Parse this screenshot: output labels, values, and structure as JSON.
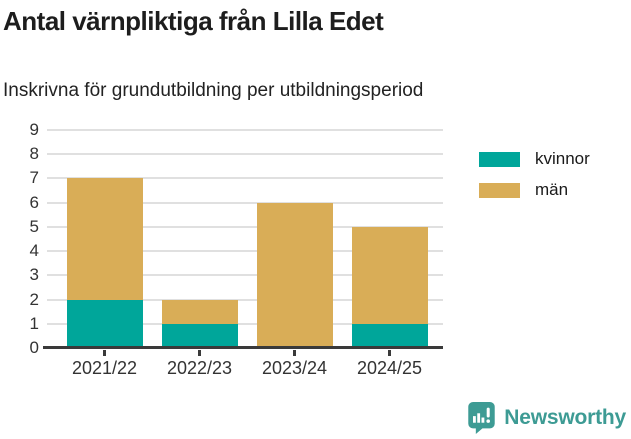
{
  "header": {
    "title": "Antal värnpliktiga från Lilla Edet",
    "subtitle": "Inskrivna för grundutbildning per utbildningsperiod"
  },
  "chart_data": {
    "type": "bar",
    "stacked": true,
    "title": "Antal värnpliktiga från Lilla Edet",
    "subtitle": "Inskrivna för grundutbildning per utbildningsperiod",
    "categories": [
      "2021/22",
      "2022/23",
      "2023/24",
      "2024/25"
    ],
    "series": [
      {
        "name": "kvinnor",
        "color": "#00a69a",
        "values": [
          2,
          1,
          0,
          1
        ]
      },
      {
        "name": "män",
        "color": "#d9ad57",
        "values": [
          5,
          1,
          6,
          4
        ]
      }
    ],
    "stack_totals": [
      7,
      2,
      6,
      5
    ],
    "xlabel": "",
    "ylabel": "",
    "ylim": [
      0,
      9
    ],
    "yticks": [
      0,
      1,
      2,
      3,
      4,
      5,
      6,
      7,
      8,
      9
    ],
    "grid": true,
    "legend_position": "right-top"
  },
  "footer": {
    "brand": "Newsworthy",
    "brand_color": "#3d9b94",
    "logo_icon": "speech-bubble-bar-chart-icon"
  },
  "colors": {
    "kvinnor": "#00a69a",
    "man": "#d9ad57",
    "grid": "#e0e0e0",
    "axis": "#3a3a3a",
    "text": "#333333"
  }
}
